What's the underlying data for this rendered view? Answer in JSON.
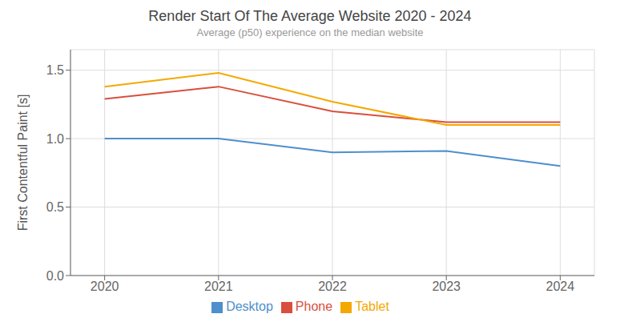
{
  "chart_data": {
    "type": "line",
    "title": "Render Start Of The Average Website 2020 - 2024",
    "subtitle": "Average (p50) experience on the median website",
    "y_label": "First Contentful Paint [s]",
    "x": [
      2020,
      2021,
      2022,
      2023,
      2024
    ],
    "series": [
      {
        "name": "Desktop",
        "color": "#4e8fcc",
        "values": [
          1.0,
          1.0,
          0.9,
          0.91,
          0.8
        ]
      },
      {
        "name": "Phone",
        "color": "#d94f3d",
        "values": [
          1.29,
          1.38,
          1.2,
          1.12,
          1.12
        ]
      },
      {
        "name": "Tablet",
        "color": "#f5a800",
        "values": [
          1.38,
          1.48,
          1.27,
          1.1,
          1.1
        ]
      }
    ],
    "xlim": [
      2019.7,
      2024.3
    ],
    "xticks": [
      2020,
      2021,
      2022,
      2023,
      2024
    ],
    "ylim": [
      0.0,
      1.65
    ],
    "yticks": [
      {
        "value": 0,
        "label": "0.0"
      },
      0.5,
      {
        "value": 1,
        "label": "1.0"
      },
      1.5
    ],
    "grid": true,
    "legend": "bottom"
  }
}
